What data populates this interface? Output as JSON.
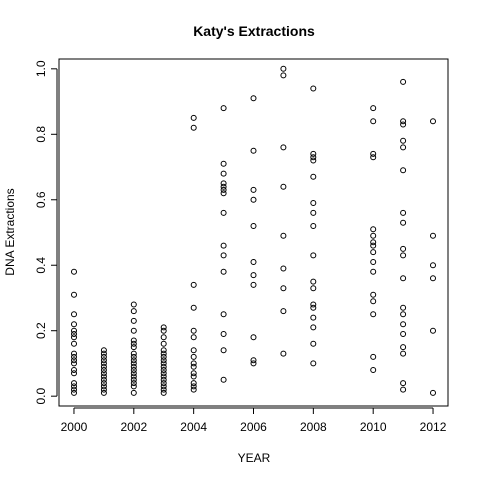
{
  "chart_data": {
    "type": "scatter",
    "title": "Katy's Extractions",
    "xlabel": "YEAR",
    "ylabel": "DNA Extractions",
    "xlim": [
      1999.5,
      2012.5
    ],
    "ylim": [
      -0.03,
      1.03
    ],
    "x_ticks": [
      "2000",
      "2002",
      "2004",
      "2006",
      "2008",
      "2010",
      "2012"
    ],
    "y_ticks": [
      "0.0",
      "0.2",
      "0.4",
      "0.6",
      "0.8",
      "1.0"
    ],
    "grid": false,
    "legend": "none",
    "points": [
      [
        2000,
        0.38
      ],
      [
        2000,
        0.31
      ],
      [
        2000,
        0.25
      ],
      [
        2000,
        0.22
      ],
      [
        2000,
        0.2
      ],
      [
        2000,
        0.19
      ],
      [
        2000,
        0.18
      ],
      [
        2000,
        0.16
      ],
      [
        2000,
        0.13
      ],
      [
        2000,
        0.12
      ],
      [
        2000,
        0.11
      ],
      [
        2000,
        0.1
      ],
      [
        2000,
        0.08
      ],
      [
        2000,
        0.07
      ],
      [
        2000,
        0.04
      ],
      [
        2000,
        0.03
      ],
      [
        2000,
        0.02
      ],
      [
        2000,
        0.01
      ],
      [
        2001,
        0.14
      ],
      [
        2001,
        0.13
      ],
      [
        2001,
        0.12
      ],
      [
        2001,
        0.11
      ],
      [
        2001,
        0.1
      ],
      [
        2001,
        0.09
      ],
      [
        2001,
        0.08
      ],
      [
        2001,
        0.07
      ],
      [
        2001,
        0.06
      ],
      [
        2001,
        0.05
      ],
      [
        2001,
        0.04
      ],
      [
        2001,
        0.03
      ],
      [
        2001,
        0.02
      ],
      [
        2001,
        0.01
      ],
      [
        2002,
        0.28
      ],
      [
        2002,
        0.26
      ],
      [
        2002,
        0.23
      ],
      [
        2002,
        0.2
      ],
      [
        2002,
        0.17
      ],
      [
        2002,
        0.16
      ],
      [
        2002,
        0.15
      ],
      [
        2002,
        0.13
      ],
      [
        2002,
        0.12
      ],
      [
        2002,
        0.11
      ],
      [
        2002,
        0.1
      ],
      [
        2002,
        0.09
      ],
      [
        2002,
        0.08
      ],
      [
        2002,
        0.07
      ],
      [
        2002,
        0.06
      ],
      [
        2002,
        0.05
      ],
      [
        2002,
        0.04
      ],
      [
        2002,
        0.03
      ],
      [
        2002,
        0.01
      ],
      [
        2003,
        0.21
      ],
      [
        2003,
        0.2
      ],
      [
        2003,
        0.18
      ],
      [
        2003,
        0.16
      ],
      [
        2003,
        0.14
      ],
      [
        2003,
        0.13
      ],
      [
        2003,
        0.12
      ],
      [
        2003,
        0.11
      ],
      [
        2003,
        0.1
      ],
      [
        2003,
        0.09
      ],
      [
        2003,
        0.08
      ],
      [
        2003,
        0.07
      ],
      [
        2003,
        0.06
      ],
      [
        2003,
        0.05
      ],
      [
        2003,
        0.04
      ],
      [
        2003,
        0.03
      ],
      [
        2003,
        0.02
      ],
      [
        2003,
        0.01
      ],
      [
        2004,
        0.85
      ],
      [
        2004,
        0.82
      ],
      [
        2004,
        0.34
      ],
      [
        2004,
        0.27
      ],
      [
        2004,
        0.2
      ],
      [
        2004,
        0.18
      ],
      [
        2004,
        0.14
      ],
      [
        2004,
        0.12
      ],
      [
        2004,
        0.1
      ],
      [
        2004,
        0.09
      ],
      [
        2004,
        0.07
      ],
      [
        2004,
        0.06
      ],
      [
        2004,
        0.04
      ],
      [
        2004,
        0.03
      ],
      [
        2004,
        0.02
      ],
      [
        2005,
        0.88
      ],
      [
        2005,
        0.71
      ],
      [
        2005,
        0.68
      ],
      [
        2005,
        0.65
      ],
      [
        2005,
        0.64
      ],
      [
        2005,
        0.63
      ],
      [
        2005,
        0.62
      ],
      [
        2005,
        0.56
      ],
      [
        2005,
        0.46
      ],
      [
        2005,
        0.43
      ],
      [
        2005,
        0.38
      ],
      [
        2005,
        0.25
      ],
      [
        2005,
        0.19
      ],
      [
        2005,
        0.14
      ],
      [
        2005,
        0.05
      ],
      [
        2006,
        0.91
      ],
      [
        2006,
        0.75
      ],
      [
        2006,
        0.63
      ],
      [
        2006,
        0.6
      ],
      [
        2006,
        0.52
      ],
      [
        2006,
        0.41
      ],
      [
        2006,
        0.37
      ],
      [
        2006,
        0.34
      ],
      [
        2006,
        0.18
      ],
      [
        2006,
        0.11
      ],
      [
        2006,
        0.1
      ],
      [
        2007,
        1.0
      ],
      [
        2007,
        0.98
      ],
      [
        2007,
        0.76
      ],
      [
        2007,
        0.64
      ],
      [
        2007,
        0.49
      ],
      [
        2007,
        0.39
      ],
      [
        2007,
        0.33
      ],
      [
        2007,
        0.26
      ],
      [
        2007,
        0.13
      ],
      [
        2008,
        0.94
      ],
      [
        2008,
        0.74
      ],
      [
        2008,
        0.73
      ],
      [
        2008,
        0.72
      ],
      [
        2008,
        0.67
      ],
      [
        2008,
        0.59
      ],
      [
        2008,
        0.56
      ],
      [
        2008,
        0.52
      ],
      [
        2008,
        0.43
      ],
      [
        2008,
        0.35
      ],
      [
        2008,
        0.33
      ],
      [
        2008,
        0.28
      ],
      [
        2008,
        0.27
      ],
      [
        2008,
        0.24
      ],
      [
        2008,
        0.21
      ],
      [
        2008,
        0.16
      ],
      [
        2008,
        0.1
      ],
      [
        2010,
        0.88
      ],
      [
        2010,
        0.84
      ],
      [
        2010,
        0.74
      ],
      [
        2010,
        0.73
      ],
      [
        2010,
        0.51
      ],
      [
        2010,
        0.49
      ],
      [
        2010,
        0.47
      ],
      [
        2010,
        0.46
      ],
      [
        2010,
        0.44
      ],
      [
        2010,
        0.41
      ],
      [
        2010,
        0.38
      ],
      [
        2010,
        0.31
      ],
      [
        2010,
        0.29
      ],
      [
        2010,
        0.25
      ],
      [
        2010,
        0.12
      ],
      [
        2010,
        0.08
      ],
      [
        2011,
        0.96
      ],
      [
        2011,
        0.84
      ],
      [
        2011,
        0.83
      ],
      [
        2011,
        0.78
      ],
      [
        2011,
        0.76
      ],
      [
        2011,
        0.69
      ],
      [
        2011,
        0.56
      ],
      [
        2011,
        0.53
      ],
      [
        2011,
        0.45
      ],
      [
        2011,
        0.43
      ],
      [
        2011,
        0.36
      ],
      [
        2011,
        0.27
      ],
      [
        2011,
        0.25
      ],
      [
        2011,
        0.22
      ],
      [
        2011,
        0.19
      ],
      [
        2011,
        0.15
      ],
      [
        2011,
        0.13
      ],
      [
        2011,
        0.04
      ],
      [
        2011,
        0.02
      ],
      [
        2012,
        0.84
      ],
      [
        2012,
        0.49
      ],
      [
        2012,
        0.4
      ],
      [
        2012,
        0.36
      ],
      [
        2012,
        0.2
      ],
      [
        2012,
        0.01
      ]
    ]
  }
}
